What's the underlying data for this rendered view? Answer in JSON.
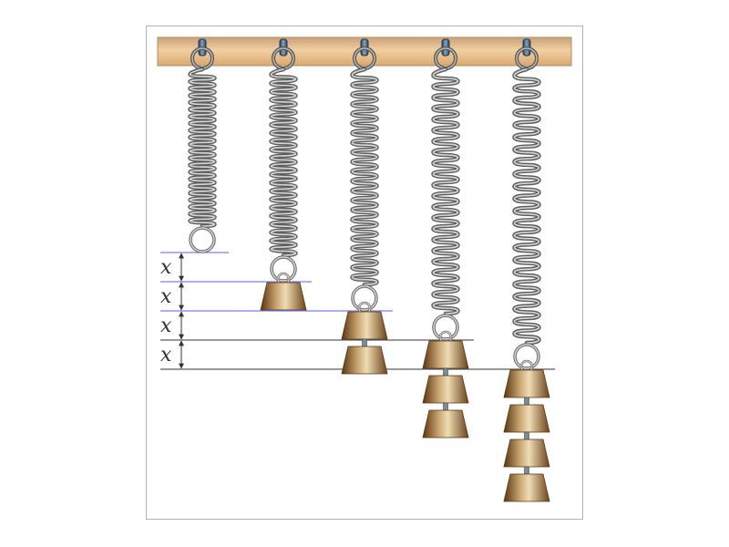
{
  "figure": {
    "spring_count": 5,
    "weights_per_spring": [
      0,
      1,
      2,
      3,
      4
    ],
    "extension_label": "x",
    "extension_labels": [
      "x",
      "x",
      "x",
      "x"
    ],
    "colors": {
      "beam": "#e4b985",
      "beam_edge": "#9d7a52",
      "spring": "#8a8a8a",
      "spring_highlight": "#e0e0e0",
      "weight_dark": "#6b4218",
      "weight_light": "#e9d2a7",
      "blue_guide": "#5b63d6",
      "black_guide": "#333333",
      "hook": "#3e5b74"
    }
  }
}
